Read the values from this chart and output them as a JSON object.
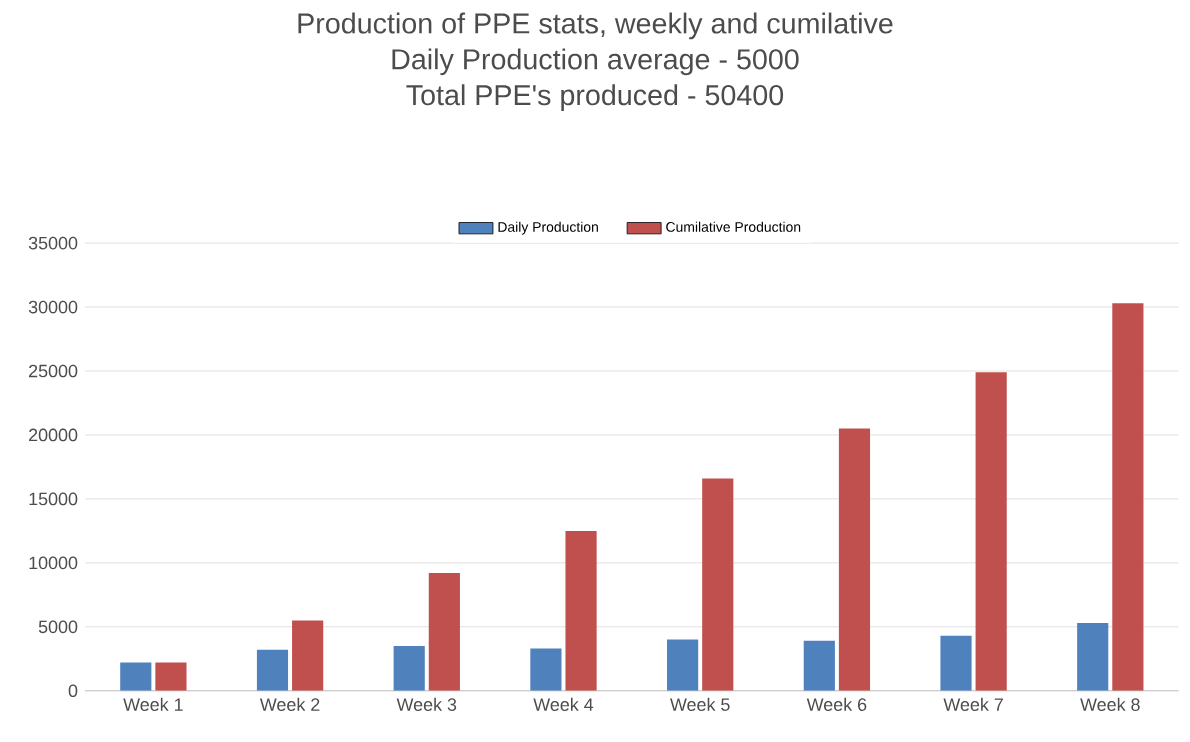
{
  "chart_data": {
    "type": "bar",
    "title": "Production of PPE stats, weekly and cumilative\nDaily Production average - 5000\nTotal PPE's produced - 50400",
    "categories": [
      "Week 1",
      "Week 2",
      "Week 3",
      "Week 4",
      "Week 5",
      "Week 6",
      "Week 7",
      "Week 8"
    ],
    "series": [
      {
        "name": "Daily Production",
        "color": "#4f81bd",
        "values": [
          2200,
          3200,
          3500,
          3300,
          4000,
          3900,
          4300,
          5300
        ]
      },
      {
        "name": "Cumilative Production",
        "color": "#c0504d",
        "values": [
          2200,
          5500,
          9200,
          12500,
          16600,
          20500,
          24900,
          30300
        ]
      }
    ],
    "ylim": [
      0,
      35000
    ],
    "yticks": [
      0,
      5000,
      10000,
      15000,
      20000,
      25000,
      30000,
      35000
    ],
    "grid": "y",
    "legend": "top"
  }
}
